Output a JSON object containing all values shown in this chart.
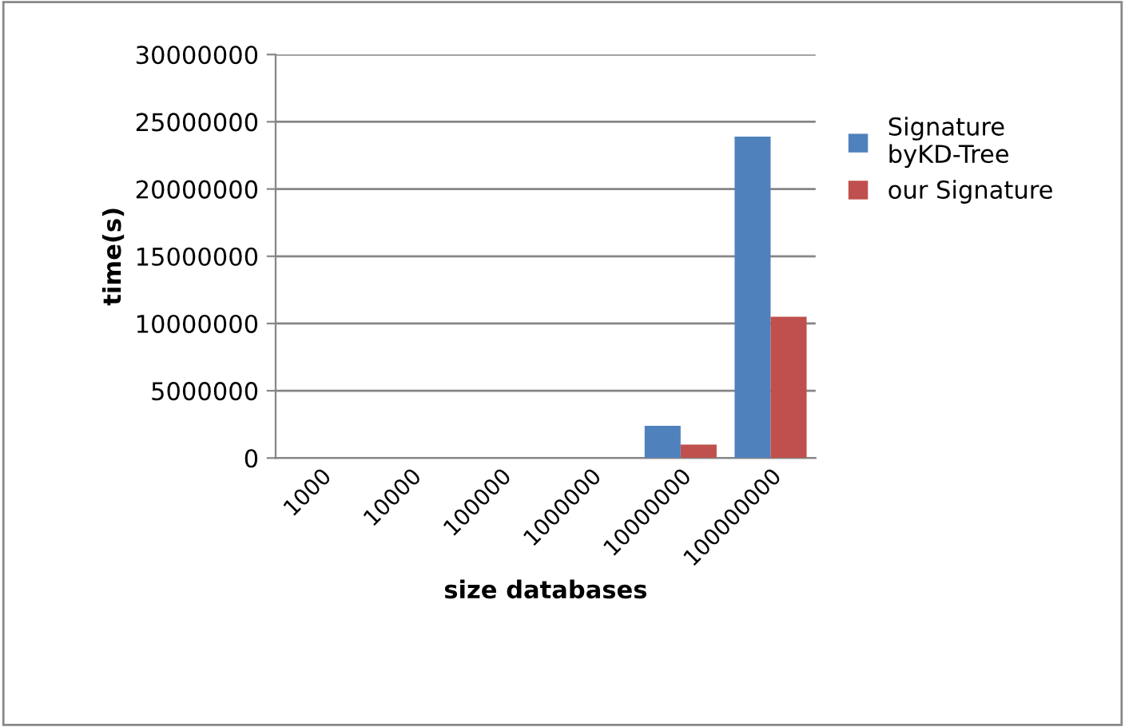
{
  "chart_data": {
    "type": "bar",
    "xlabel": "size databases",
    "ylabel": "time(s)",
    "categories": [
      "1000",
      "10000",
      "100000",
      "1000000",
      "10000000",
      "100000000"
    ],
    "series": [
      {
        "name": "Signature\nbyKD-Tree",
        "color": "#4f81bd",
        "values": [
          0,
          0,
          0,
          0,
          2400000,
          23900000
        ]
      },
      {
        "name": "our Signature",
        "color": "#c0504d",
        "values": [
          0,
          0,
          0,
          0,
          1000000,
          10500000
        ]
      }
    ],
    "ylim": [
      0,
      30000000
    ],
    "yticks": [
      0,
      5000000,
      10000000,
      15000000,
      20000000,
      25000000,
      30000000
    ],
    "grid": "y",
    "legend": "right"
  }
}
